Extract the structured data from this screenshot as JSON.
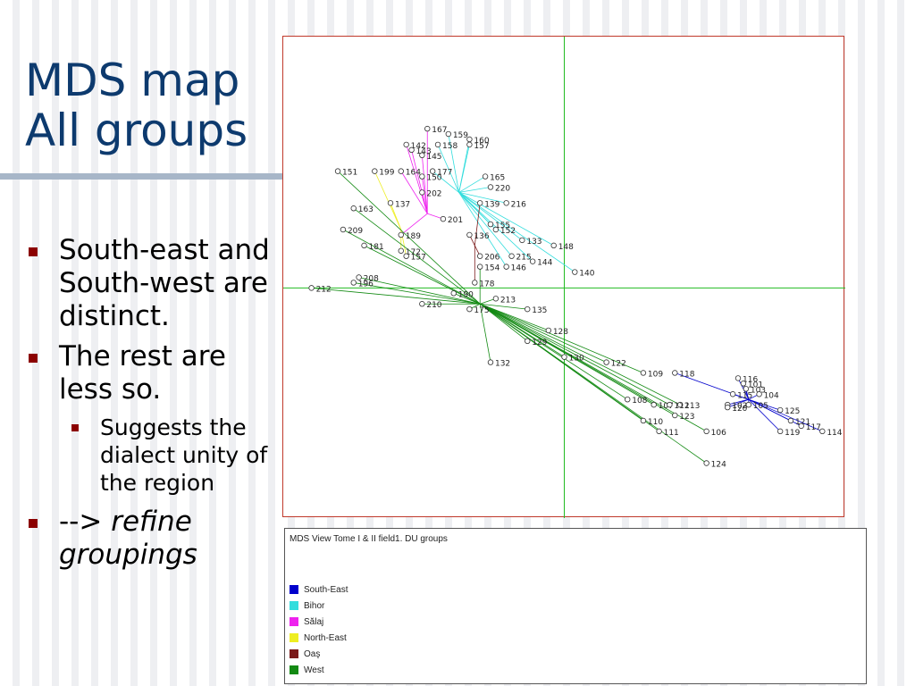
{
  "slide": {
    "title_line1": "MDS map",
    "title_line2": "All groups",
    "bullet1": "South-east and South-west are distinct.",
    "bullet2": "The rest are less so.",
    "sub_bullet": "Suggests the dialect unity of the region",
    "bullet3_prefix": "-->",
    "bullet3_emph": "refine groupings"
  },
  "legend": {
    "title": "MDS View Tome I & II field1. DU groups",
    "items": [
      {
        "label": "South-East",
        "color": "#0000cc"
      },
      {
        "label": "Bihor",
        "color": "#33dddd"
      },
      {
        "label": "Sălaj",
        "color": "#ee22ee"
      },
      {
        "label": "North-East",
        "color": "#eeee22"
      },
      {
        "label": "Oaş",
        "color": "#7a1a1a"
      },
      {
        "label": "West",
        "color": "#138a13"
      }
    ]
  },
  "chart_data": {
    "type": "scatter",
    "title": "",
    "xlabel": "",
    "ylabel": "",
    "series": [
      {
        "name": "South-East",
        "color": "#0000cc",
        "points": [
          {
            "label": "116",
            "x": 0.33,
            "y": -0.17
          },
          {
            "label": "101",
            "x": 0.34,
            "y": -0.18
          },
          {
            "label": "103",
            "x": 0.345,
            "y": -0.19
          },
          {
            "label": "104",
            "x": 0.37,
            "y": -0.2
          },
          {
            "label": "115",
            "x": 0.32,
            "y": -0.2
          },
          {
            "label": "105",
            "x": 0.35,
            "y": -0.22
          },
          {
            "label": "125",
            "x": 0.41,
            "y": -0.23
          },
          {
            "label": "121",
            "x": 0.43,
            "y": -0.25
          },
          {
            "label": "117",
            "x": 0.45,
            "y": -0.26
          },
          {
            "label": "114",
            "x": 0.49,
            "y": -0.27
          },
          {
            "label": "119",
            "x": 0.41,
            "y": -0.27
          },
          {
            "label": "118",
            "x": 0.21,
            "y": -0.16
          },
          {
            "label": "102",
            "x": 0.31,
            "y": -0.22
          },
          {
            "label": "120",
            "x": 0.31,
            "y": -0.225
          }
        ]
      },
      {
        "name": "Bihor",
        "color": "#33dddd",
        "points": [
          {
            "label": "160",
            "x": -0.18,
            "y": 0.28
          },
          {
            "label": "157",
            "x": -0.18,
            "y": 0.27
          },
          {
            "label": "158",
            "x": -0.24,
            "y": 0.27
          },
          {
            "label": "177",
            "x": -0.25,
            "y": 0.22
          },
          {
            "label": "165",
            "x": -0.15,
            "y": 0.21
          },
          {
            "label": "216",
            "x": -0.11,
            "y": 0.16
          },
          {
            "label": "155",
            "x": -0.14,
            "y": 0.12
          },
          {
            "label": "152",
            "x": -0.13,
            "y": 0.11
          },
          {
            "label": "133",
            "x": -0.08,
            "y": 0.09
          },
          {
            "label": "148",
            "x": -0.02,
            "y": 0.08
          },
          {
            "label": "144",
            "x": -0.06,
            "y": 0.05
          },
          {
            "label": "140",
            "x": 0.02,
            "y": 0.03
          },
          {
            "label": "215",
            "x": -0.1,
            "y": 0.06
          },
          {
            "label": "146",
            "x": -0.11,
            "y": 0.04
          },
          {
            "label": "220",
            "x": -0.14,
            "y": 0.19
          },
          {
            "label": "159",
            "x": -0.22,
            "y": 0.29
          }
        ]
      },
      {
        "name": "Sălaj",
        "color": "#ee22ee",
        "points": [
          {
            "label": "142",
            "x": -0.3,
            "y": 0.27
          },
          {
            "label": "143",
            "x": -0.29,
            "y": 0.26
          },
          {
            "label": "145",
            "x": -0.27,
            "y": 0.25
          },
          {
            "label": "164",
            "x": -0.31,
            "y": 0.22
          },
          {
            "label": "150",
            "x": -0.27,
            "y": 0.21
          },
          {
            "label": "202",
            "x": -0.27,
            "y": 0.18
          },
          {
            "label": "189",
            "x": -0.31,
            "y": 0.1
          },
          {
            "label": "201",
            "x": -0.23,
            "y": 0.13
          },
          {
            "label": "167",
            "x": -0.26,
            "y": 0.3
          }
        ]
      },
      {
        "name": "North-East",
        "color": "#eeee22",
        "points": [
          {
            "label": "199",
            "x": -0.36,
            "y": 0.22
          },
          {
            "label": "137",
            "x": -0.33,
            "y": 0.16
          },
          {
            "label": "172",
            "x": -0.31,
            "y": 0.07
          },
          {
            "label": "157",
            "x": -0.3,
            "y": 0.06
          }
        ]
      },
      {
        "name": "Oaş",
        "color": "#7a1a1a",
        "points": [
          {
            "label": "206",
            "x": -0.16,
            "y": 0.06
          },
          {
            "label": "178",
            "x": -0.17,
            "y": 0.01
          },
          {
            "label": "136",
            "x": -0.18,
            "y": 0.1
          },
          {
            "label": "139",
            "x": -0.16,
            "y": 0.16
          }
        ]
      },
      {
        "name": "West",
        "color": "#138a13",
        "points": [
          {
            "label": "151",
            "x": -0.43,
            "y": 0.22
          },
          {
            "label": "163",
            "x": -0.4,
            "y": 0.15
          },
          {
            "label": "209",
            "x": -0.42,
            "y": 0.11
          },
          {
            "label": "181",
            "x": -0.38,
            "y": 0.08
          },
          {
            "label": "208",
            "x": -0.39,
            "y": 0.02
          },
          {
            "label": "196",
            "x": -0.4,
            "y": 0.01
          },
          {
            "label": "212",
            "x": -0.48,
            "y": 0.0
          },
          {
            "label": "175",
            "x": -0.18,
            "y": -0.04
          },
          {
            "label": "213",
            "x": -0.13,
            "y": -0.02
          },
          {
            "label": "135",
            "x": -0.07,
            "y": -0.04
          },
          {
            "label": "128",
            "x": -0.03,
            "y": -0.08
          },
          {
            "label": "129",
            "x": -0.07,
            "y": -0.1
          },
          {
            "label": "132",
            "x": -0.14,
            "y": -0.14
          },
          {
            "label": "130",
            "x": 0.0,
            "y": -0.13
          },
          {
            "label": "122",
            "x": 0.08,
            "y": -0.14
          },
          {
            "label": "109",
            "x": 0.15,
            "y": -0.16
          },
          {
            "label": "108",
            "x": 0.12,
            "y": -0.21
          },
          {
            "label": "107",
            "x": 0.17,
            "y": -0.22
          },
          {
            "label": "113",
            "x": 0.22,
            "y": -0.22
          },
          {
            "label": "112",
            "x": 0.2,
            "y": -0.22
          },
          {
            "label": "123",
            "x": 0.21,
            "y": -0.24
          },
          {
            "label": "110",
            "x": 0.15,
            "y": -0.25
          },
          {
            "label": "111",
            "x": 0.18,
            "y": -0.27
          },
          {
            "label": "106",
            "x": 0.27,
            "y": -0.27
          },
          {
            "label": "124",
            "x": 0.27,
            "y": -0.33
          },
          {
            "label": "154",
            "x": -0.16,
            "y": 0.04
          },
          {
            "label": "210",
            "x": -0.27,
            "y": -0.03
          },
          {
            "label": "190",
            "x": -0.21,
            "y": -0.01
          }
        ]
      }
    ],
    "centroids": [
      {
        "series": "South-East",
        "x": 0.35,
        "y": -0.21
      },
      {
        "series": "Bihor",
        "x": -0.2,
        "y": 0.18
      },
      {
        "series": "Sălaj",
        "x": -0.26,
        "y": 0.14
      },
      {
        "series": "North-East",
        "x": -0.31,
        "y": 0.11
      },
      {
        "series": "Oaş",
        "x": -0.17,
        "y": 0.08
      },
      {
        "series": "West",
        "x": -0.16,
        "y": -0.03
      }
    ],
    "xlim": [
      -0.52,
      0.52
    ],
    "ylim": [
      -0.42,
      0.46
    ],
    "axis_lines": true
  }
}
